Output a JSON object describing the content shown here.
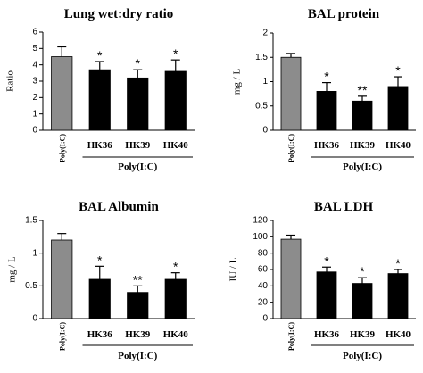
{
  "colors": {
    "control_bar": "#8c8c8c",
    "treated_bar": "#000000",
    "axis": "#000000"
  },
  "chart_data": [
    {
      "type": "bar",
      "title": "Lung wet:dry ratio",
      "ylabel": "Ratio",
      "ylim": [
        0,
        6
      ],
      "yticks": [
        0,
        1,
        2,
        3,
        4,
        5,
        6
      ],
      "categories": [
        "Poly(I:C)",
        "HK36",
        "HK39",
        "HK40"
      ],
      "values": [
        4.5,
        3.7,
        3.2,
        3.6
      ],
      "errors": [
        0.6,
        0.5,
        0.5,
        0.7
      ],
      "significance": [
        "",
        "*",
        "*",
        "*"
      ],
      "group_label": "Poly(I:C)"
    },
    {
      "type": "bar",
      "title": "BAL protein",
      "ylabel": "mg / L",
      "ylim": [
        0,
        2
      ],
      "yticks": [
        0,
        0.5,
        1,
        1.5,
        2
      ],
      "categories": [
        "Poly(I:C)",
        "HK36",
        "HK39",
        "HK40"
      ],
      "values": [
        1.5,
        0.8,
        0.6,
        0.9
      ],
      "errors": [
        0.08,
        0.18,
        0.1,
        0.2
      ],
      "significance": [
        "",
        "*",
        "**",
        "*"
      ],
      "group_label": "Poly(I:C)"
    },
    {
      "type": "bar",
      "title": "BAL Albumin",
      "ylabel": "mg / L",
      "ylim": [
        0,
        1.5
      ],
      "yticks": [
        0,
        0.5,
        1,
        1.5
      ],
      "categories": [
        "Poly(I:C)",
        "HK36",
        "HK39",
        "HK40"
      ],
      "values": [
        1.2,
        0.6,
        0.4,
        0.6
      ],
      "errors": [
        0.1,
        0.2,
        0.1,
        0.1
      ],
      "significance": [
        "",
        "*",
        "**",
        "*"
      ],
      "group_label": "Poly(I:C)"
    },
    {
      "type": "bar",
      "title": "BAL LDH",
      "ylabel": "IU / L",
      "ylim": [
        0,
        120
      ],
      "yticks": [
        0,
        20,
        40,
        60,
        80,
        100,
        120
      ],
      "categories": [
        "Poly(I:C)",
        "HK36",
        "HK39",
        "HK40"
      ],
      "values": [
        97,
        57,
        43,
        55
      ],
      "errors": [
        5,
        6,
        7,
        5
      ],
      "significance": [
        "",
        "*",
        "*",
        "*"
      ],
      "group_label": "Poly(I:C)"
    }
  ]
}
